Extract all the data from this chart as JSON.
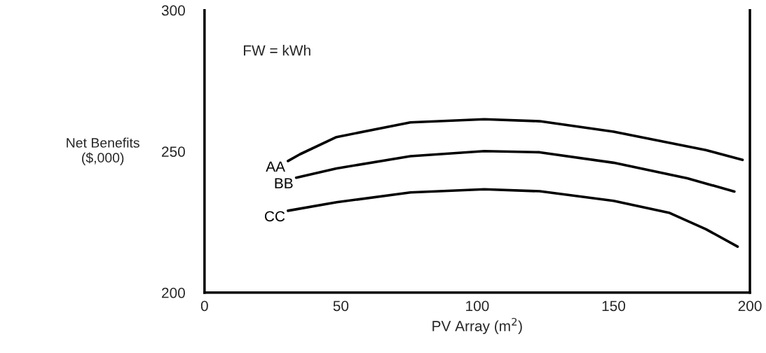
{
  "chart_data": {
    "type": "line",
    "xlabel": "PV Array (m$^{2}$)",
    "ylabel": "Net Benefits\n($,000)",
    "annotations": [
      "FW = kWh"
    ],
    "xlim": [
      0,
      200
    ],
    "xticks": [
      0,
      50,
      100,
      150,
      200
    ],
    "ylim": [
      200,
      300
    ],
    "yticks": [
      200,
      250,
      300
    ],
    "grid": false,
    "legend": false,
    "marker": "none",
    "line_style": "solid",
    "series": [
      {
        "name": "AA",
        "color": "#000000",
        "x": [
          30.6,
          35,
          48.4,
          75.5,
          102.6,
          122.9,
          150,
          183.8,
          197.3
        ],
        "values": [
          246.6,
          249,
          255.1,
          260.3,
          261.4,
          260.7,
          257.0,
          250.5,
          247.0
        ]
      },
      {
        "name": "BB",
        "color": "#000000",
        "x": [
          33.6,
          48.4,
          75.5,
          102.6,
          122.9,
          150,
          177,
          194.3
        ],
        "values": [
          240.7,
          244.0,
          248.3,
          250.1,
          249.7,
          246.0,
          240.5,
          235.8
        ]
      },
      {
        "name": "CC",
        "color": "#000000",
        "x": [
          30.6,
          48.4,
          75.5,
          102.6,
          122.9,
          150,
          170.3,
          183.8,
          195.5
        ],
        "values": [
          229.0,
          232.0,
          235.5,
          236.6,
          235.9,
          232.5,
          228.3,
          222.5,
          216.3
        ]
      }
    ]
  }
}
